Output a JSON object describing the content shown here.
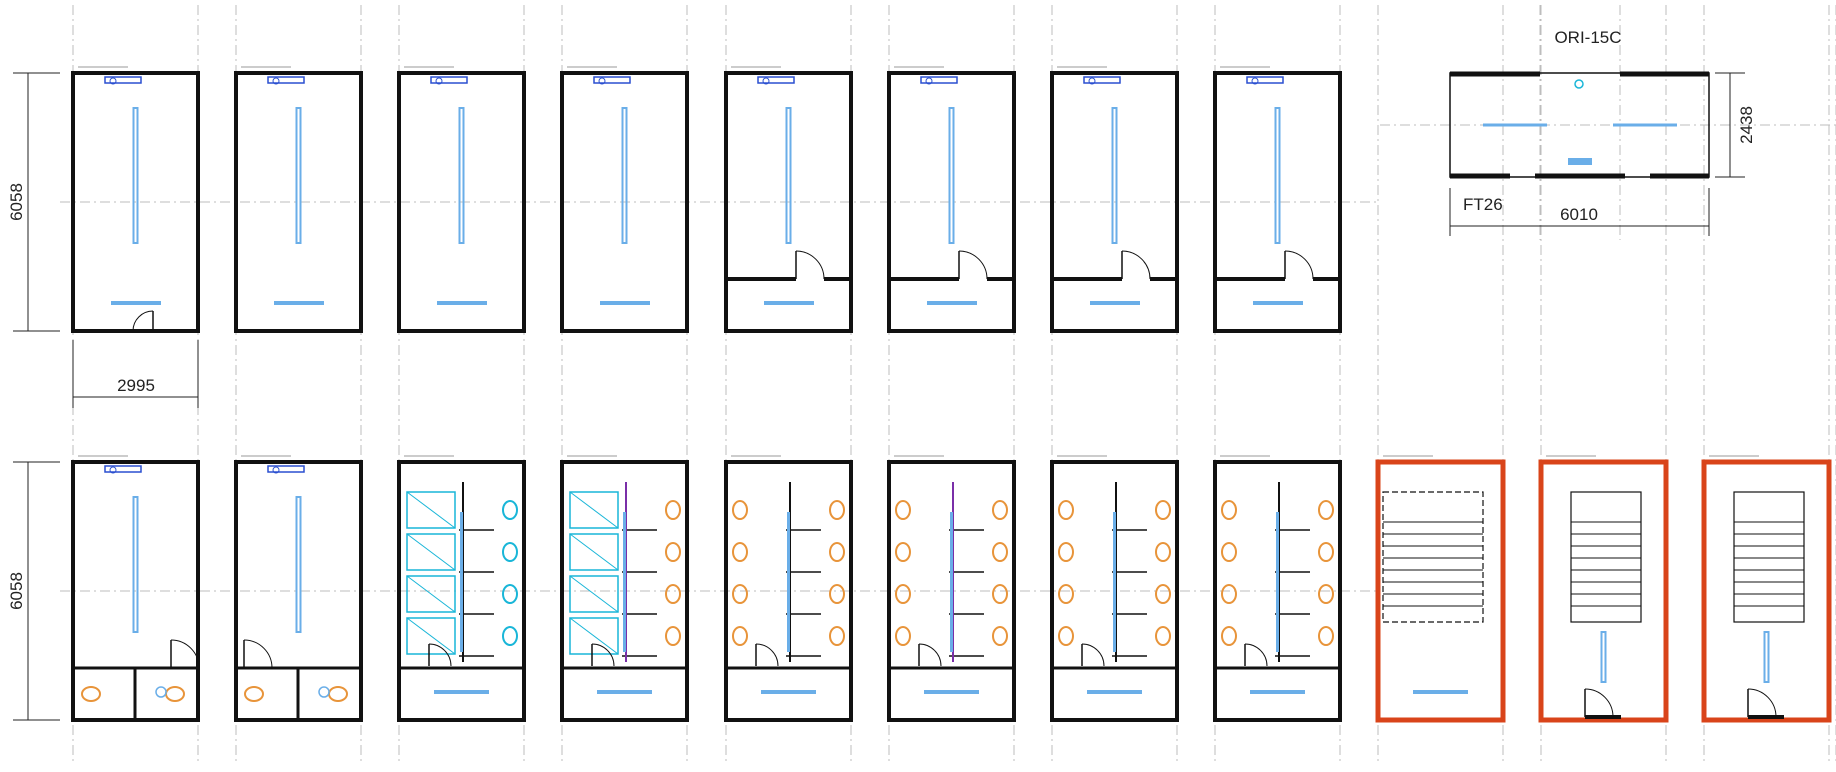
{
  "row1": {
    "titles": [
      "ORI-18",
      "ORI-18",
      "ORI-18",
      "ORI-18",
      "ORI-18BC",
      "ORI-18BC",
      "ORI-18BC",
      "ORI-18BC"
    ],
    "codes": [
      "IN36-140",
      "IN36-150",
      "IN36-160",
      "IN36-170",
      "IN36-180",
      "IN36-190",
      "IN36-200",
      "IN36-210"
    ],
    "height_dim": "6058",
    "width_dim": "2995"
  },
  "module15": {
    "title": "ORI-15C",
    "code": "FT26",
    "width_dim": "6010",
    "height_dim": "2438"
  },
  "row2": {
    "titles": [
      "ORI-18BS",
      "ORI-18BS",
      "ORI-18SD",
      "ORI-18SN",
      "ORI-18SW",
      "ORI-18SM",
      "ORI-18SH",
      "ORI-18SX",
      "ORI-18EI",
      "ORI-18EI3",
      "ORI-18EI2"
    ],
    "codes": [
      "IN36-130",
      "IN36-130",
      "INS1-36",
      "INS2-36",
      "INS3-36",
      "XNS4-36",
      "XNS5-36",
      "INS6-36",
      "IN36-648",
      "IN36-650",
      "IN36-649"
    ],
    "height_dim": "6058"
  },
  "colors": {
    "wall": "#111111",
    "fixture": "#6aaee8",
    "shower": "#19b6d8",
    "toilet": "#e8943a",
    "partition": "#7a2fa8",
    "stair_wall": "#d9441a"
  }
}
